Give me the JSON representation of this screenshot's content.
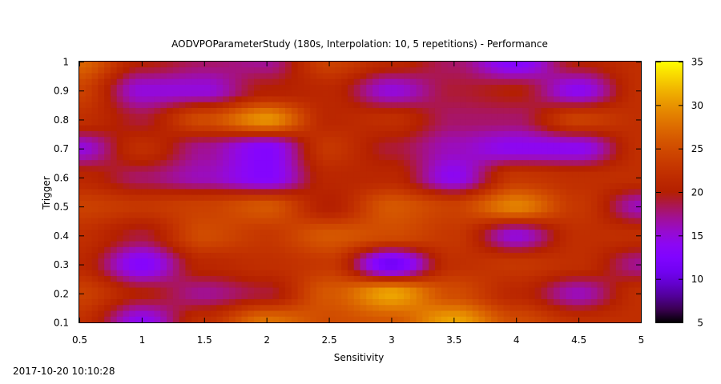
{
  "chart_data": {
    "type": "heatmap",
    "title": "AODVPOParameterStudy (180s, Interpolation: 10, 5 repetitions) - Performance",
    "xlabel": "Sensitivity",
    "ylabel": "Trigger",
    "timestamp": "2017-10-20 10:10:28",
    "xlim": [
      0.5,
      5
    ],
    "ylim": [
      0.1,
      1
    ],
    "x": [
      0.5,
      1,
      1.5,
      2,
      2.5,
      3,
      3.5,
      4,
      4.5,
      5
    ],
    "y": [
      0.1,
      0.2,
      0.3,
      0.4,
      0.5,
      0.6,
      0.7,
      0.8,
      0.9,
      1
    ],
    "z": [
      [
        22,
        14,
        22,
        28,
        25,
        26,
        31,
        25,
        22,
        22
      ],
      [
        24,
        20,
        17,
        19,
        26,
        31,
        25,
        21,
        16,
        22
      ],
      [
        21,
        13,
        21,
        22,
        23,
        11,
        22,
        23,
        22,
        17
      ],
      [
        22,
        19,
        25,
        23,
        26,
        25,
        23,
        15,
        22,
        22
      ],
      [
        24,
        23,
        24,
        26,
        20,
        26,
        24,
        29,
        23,
        16
      ],
      [
        21,
        18,
        16,
        13,
        21,
        21,
        14,
        23,
        22,
        22
      ],
      [
        15,
        22,
        17,
        13,
        23,
        19,
        16,
        14,
        14,
        22
      ],
      [
        22,
        19,
        25,
        30,
        21,
        22,
        18,
        18,
        24,
        22
      ],
      [
        24,
        15,
        15,
        20,
        21,
        15,
        19,
        20,
        14,
        22
      ],
      [
        27,
        20,
        18,
        17,
        24,
        21,
        18,
        13,
        20,
        22
      ]
    ],
    "colorbar": {
      "range": [
        5,
        35
      ],
      "ticks": [
        "5",
        "10",
        "15",
        "20",
        "25",
        "30",
        "35"
      ]
    },
    "x_ticks": [
      "0.5",
      "1",
      "1.5",
      "2",
      "2.5",
      "3",
      "3.5",
      "4",
      "4.5",
      "5"
    ],
    "y_ticks": [
      "0.1",
      "0.2",
      "0.3",
      "0.4",
      "0.5",
      "0.6",
      "0.7",
      "0.8",
      "0.9",
      "1"
    ],
    "palette": "gnuplot-black-blue-red-yellow",
    "grid": false,
    "legend": "colorbar-right"
  }
}
